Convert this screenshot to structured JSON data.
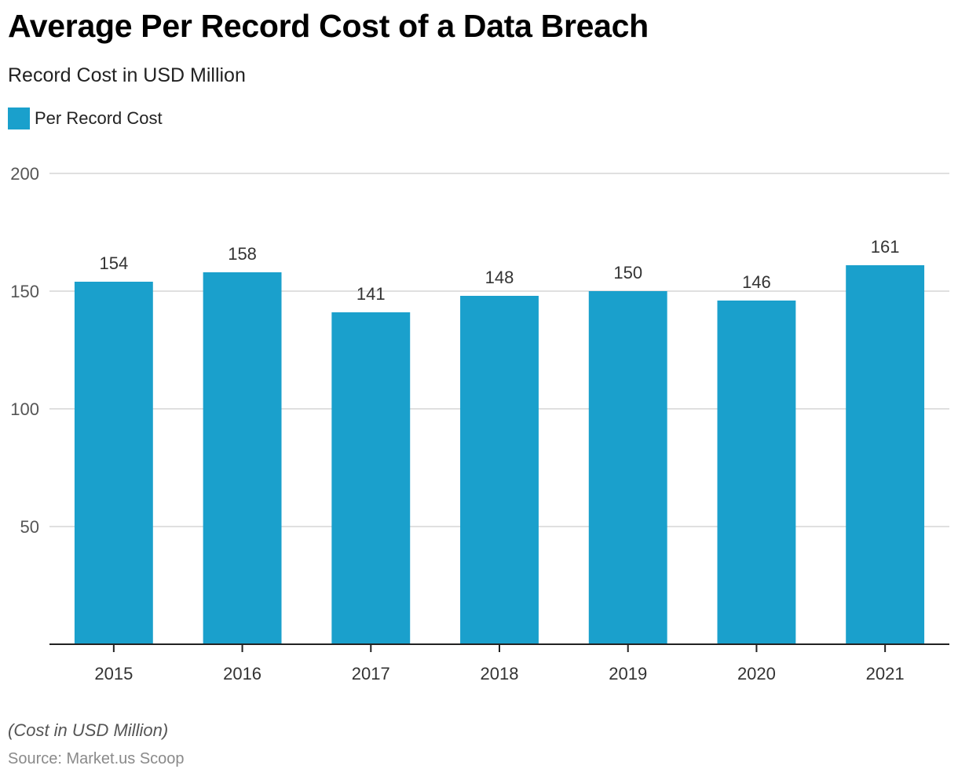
{
  "chart_data": {
    "type": "bar",
    "title": "Average Per Record Cost of a Data Breach",
    "subtitle": "Record Cost in USD Million",
    "xlabel": "",
    "ylabel": "",
    "categories": [
      "2015",
      "2016",
      "2017",
      "2018",
      "2019",
      "2020",
      "2021"
    ],
    "series": [
      {
        "name": "Per Record Cost",
        "color": "#1aa0cc",
        "values": [
          154,
          158,
          141,
          148,
          150,
          146,
          161
        ]
      }
    ],
    "ylim": [
      0,
      200
    ],
    "yticks": [
      50,
      100,
      150,
      200
    ],
    "grid": true,
    "legend": "top-left",
    "data_labels": true,
    "note": "(Cost in USD Million)",
    "source": "Source: Market.us Scoop"
  },
  "colors": {
    "bar": "#1aa0cc",
    "grid": "#d6d6d6",
    "axis": "#222222"
  }
}
